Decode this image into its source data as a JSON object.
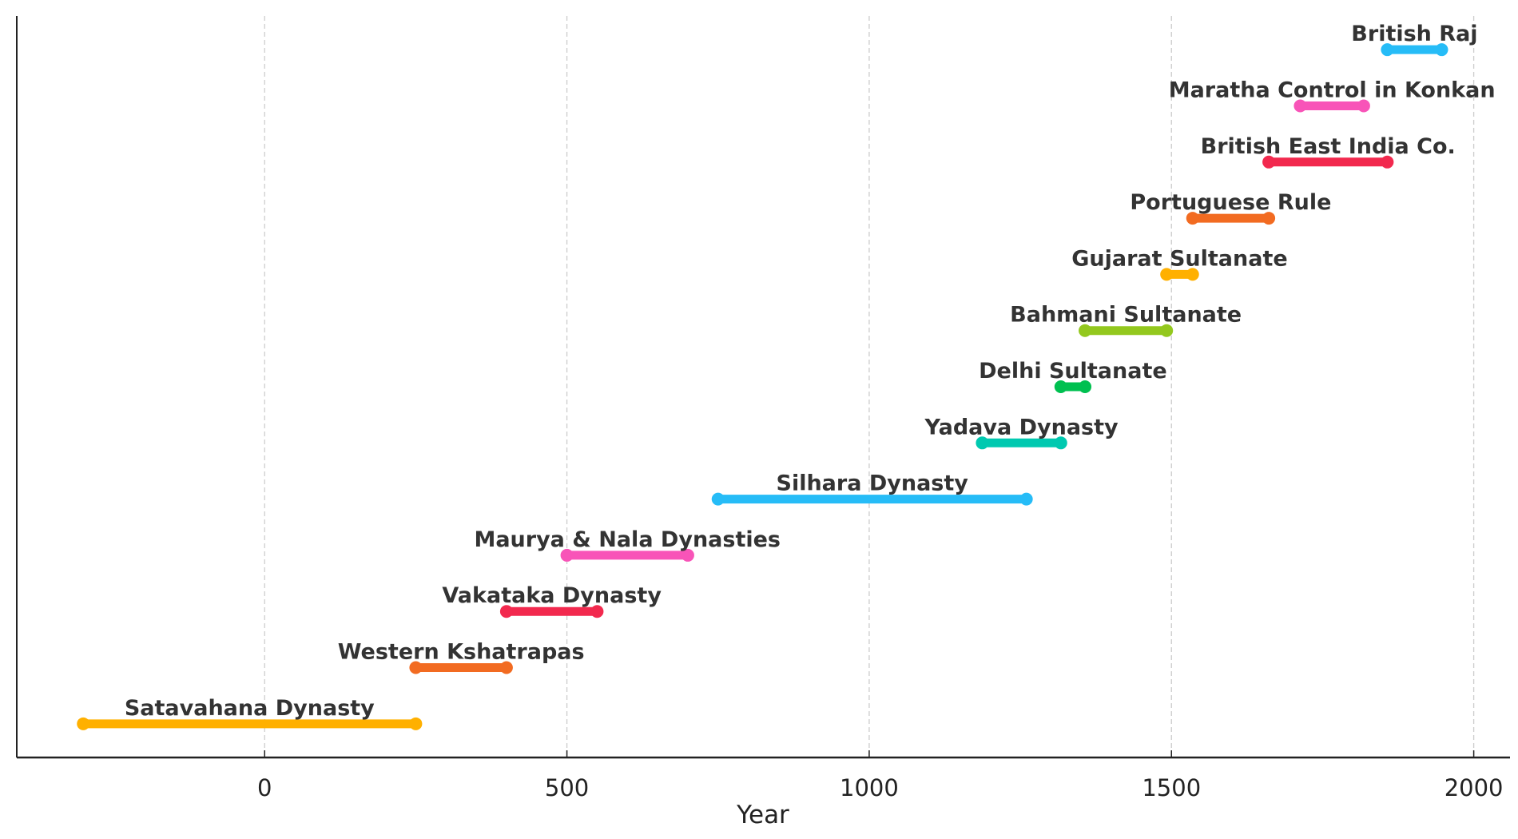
{
  "chart_data": {
    "type": "timeline",
    "title": "",
    "xlabel": "Year",
    "ylabel": "",
    "xlim": [
      -410,
      2060
    ],
    "xticks": [
      0,
      500,
      1000,
      1500,
      2000
    ],
    "xtick_labels": [
      "0",
      "500",
      "1000",
      "1500",
      "2000"
    ],
    "grid": "vertical dashed",
    "series": [
      {
        "name": "Satavahana Dynasty",
        "start": -300,
        "end": 250,
        "color": "#FFB000"
      },
      {
        "name": "Western Kshatrapas",
        "start": 250,
        "end": 400,
        "color": "#F26B21"
      },
      {
        "name": "Vakataka Dynasty",
        "start": 400,
        "end": 550,
        "color": "#F2294E"
      },
      {
        "name": "Maurya & Nala Dynasties",
        "start": 500,
        "end": 700,
        "color": "#F854B8"
      },
      {
        "name": "Silhara Dynasty",
        "start": 750,
        "end": 1260,
        "color": "#26BCF7"
      },
      {
        "name": "Yadava Dynasty",
        "start": 1187,
        "end": 1317,
        "color": "#00C9B0"
      },
      {
        "name": "Delhi Sultanate",
        "start": 1317,
        "end": 1357,
        "color": "#00C050"
      },
      {
        "name": "Bahmani Sultanate",
        "start": 1357,
        "end": 1492,
        "color": "#93C81E"
      },
      {
        "name": "Gujarat Sultanate",
        "start": 1492,
        "end": 1535,
        "color": "#FFB000"
      },
      {
        "name": "Portuguese Rule",
        "start": 1535,
        "end": 1661,
        "color": "#F26B21"
      },
      {
        "name": "British East India Co.",
        "start": 1661,
        "end": 1857,
        "color": "#F2294E"
      },
      {
        "name": "Maratha Control in Konkan",
        "start": 1713,
        "end": 1818,
        "color": "#F854B8"
      },
      {
        "name": "British Raj",
        "start": 1857,
        "end": 1947,
        "color": "#26BCF7"
      }
    ]
  }
}
